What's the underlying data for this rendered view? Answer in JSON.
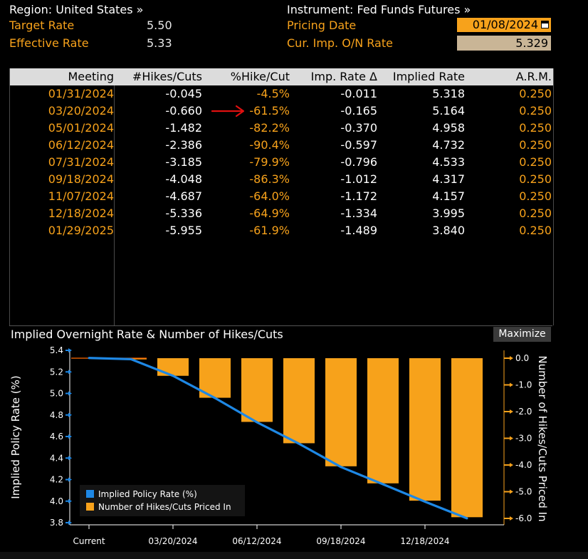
{
  "header": {
    "region": "Region: United States »",
    "target_rate_label": "Target Rate",
    "target_rate_value": "5.50",
    "effective_rate_label": "Effective Rate",
    "effective_rate_value": "5.33",
    "instrument": "Instrument: Fed Funds Futures »",
    "pricing_date_label": "Pricing Date",
    "pricing_date_value": "01/08/2024",
    "imp_rate_label": "Cur. Imp. O/N Rate",
    "imp_rate_value": "5.329"
  },
  "table": {
    "headers": [
      "Meeting",
      "#Hikes/Cuts",
      "%Hike/Cut",
      "Imp. Rate Δ",
      "Implied Rate",
      "A.R.M."
    ],
    "rows": [
      [
        "01/31/2024",
        "-0.045",
        "-4.5%",
        "-0.011",
        "5.318",
        "0.250"
      ],
      [
        "03/20/2024",
        "-0.660",
        "-61.5%",
        "-0.165",
        "5.164",
        "0.250"
      ],
      [
        "05/01/2024",
        "-1.482",
        "-82.2%",
        "-0.370",
        "4.958",
        "0.250"
      ],
      [
        "06/12/2024",
        "-2.386",
        "-90.4%",
        "-0.597",
        "4.732",
        "0.250"
      ],
      [
        "07/31/2024",
        "-3.185",
        "-79.9%",
        "-0.796",
        "4.533",
        "0.250"
      ],
      [
        "09/18/2024",
        "-4.048",
        "-86.3%",
        "-1.012",
        "4.317",
        "0.250"
      ],
      [
        "11/07/2024",
        "-4.687",
        "-64.0%",
        "-1.172",
        "4.157",
        "0.250"
      ],
      [
        "12/18/2024",
        "-5.336",
        "-64.9%",
        "-1.334",
        "3.995",
        "0.250"
      ],
      [
        "01/29/2025",
        "-5.955",
        "-61.9%",
        "-1.489",
        "3.840",
        "0.250"
      ]
    ]
  },
  "chart": {
    "title": "Implied Overnight Rate & Number of Hikes/Cuts",
    "maximize_label": "Maximize"
  },
  "colors": {
    "orange": "#f7a21b",
    "blue": "#1e88e5",
    "annotation_arrow": "#e01010"
  },
  "chart_data": {
    "type": "bar",
    "x": [
      "Current",
      "01/31/2024",
      "03/20/2024",
      "05/01/2024",
      "06/12/2024",
      "07/31/2024",
      "09/18/2024",
      "11/07/2024",
      "12/18/2024",
      "01/29/2025"
    ],
    "x_tick_labels": [
      "Current",
      "03/20/2024",
      "06/12/2024",
      "09/18/2024",
      "12/18/2024"
    ],
    "series": [
      {
        "name": "Implied Policy Rate (%)",
        "type": "line",
        "axis": "left",
        "color": "#1e88e5",
        "values": [
          5.329,
          5.318,
          5.164,
          4.958,
          4.732,
          4.533,
          4.317,
          4.157,
          3.995,
          3.84
        ]
      },
      {
        "name": "Number of Hikes/Cuts Priced In",
        "type": "bar",
        "axis": "right",
        "color": "#f7a21b",
        "values": [
          0,
          -0.045,
          -0.66,
          -1.482,
          -2.386,
          -3.185,
          -4.048,
          -4.687,
          -5.336,
          -5.955
        ]
      }
    ],
    "ylabel_left": "Implied Policy Rate (%)",
    "ylabel_right": "Number of Hikes/Cuts Priced In",
    "ylim_left": [
      3.8,
      5.4
    ],
    "ylim_right": [
      -6.0,
      0.0
    ],
    "yticks_left": [
      "5.4",
      "5.2",
      "5.0",
      "4.8",
      "4.6",
      "4.4",
      "4.2",
      "4.0",
      "3.8"
    ],
    "yticks_right": [
      "0.0",
      "-1.0",
      "-2.0",
      "-3.0",
      "-4.0",
      "-5.0",
      "-6.0"
    ],
    "legend": "bottom-left",
    "grid": false
  }
}
